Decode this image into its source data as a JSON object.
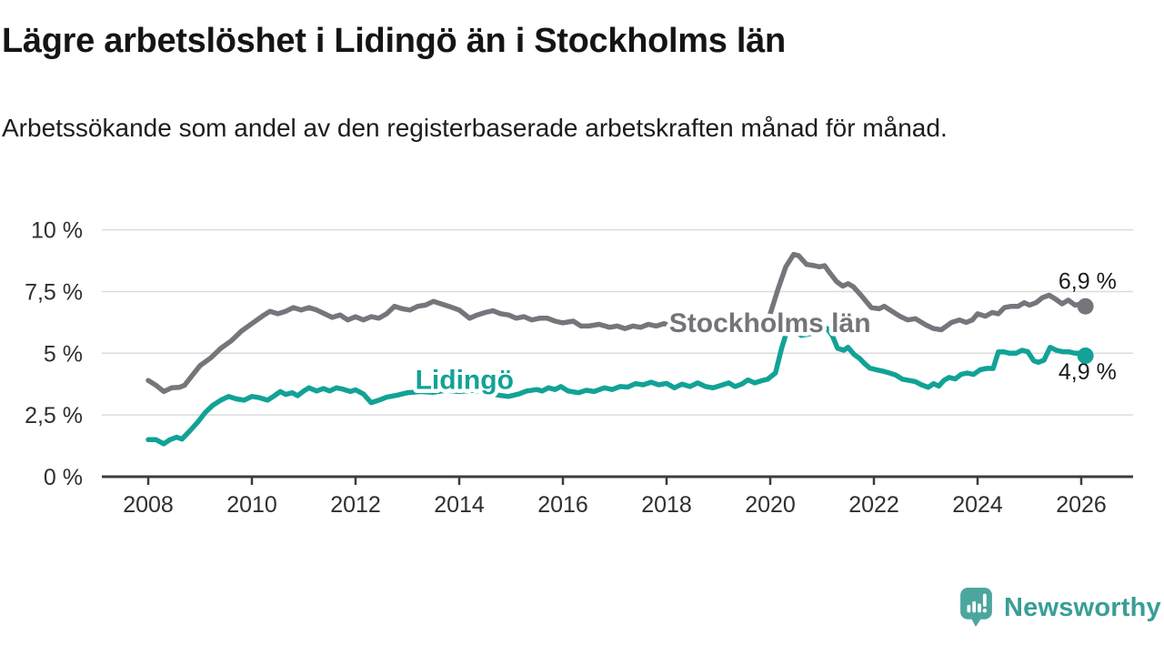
{
  "header": {
    "title": "Lägre arbetslöshet i Lidingö än i Stockholms län",
    "subtitle": "Arbetssökande som andel av den registerbaserade arbetskraften månad för månad."
  },
  "logo": {
    "text": "Newsworthy",
    "icon": "newsworthy-bars-icon",
    "mark_color": "#4BA79E",
    "text_color": "#389E96"
  },
  "chart_data": {
    "type": "line",
    "title": "Lägre arbetslöshet i Lidingö än i Stockholms län",
    "subtitle": "Arbetssökande som andel av den registerbaserade arbetskraften månad för månad.",
    "xlabel": "",
    "ylabel": "",
    "ylim": [
      0,
      10
    ],
    "xlim": [
      2007.1,
      2027.0
    ],
    "grid": true,
    "grid_color": "#DBDBDB",
    "axis_color": "#3C3C3C",
    "tick_text_color": "#2F2F2F",
    "y_ticks": [
      {
        "value": 0,
        "label": "0 %"
      },
      {
        "value": 2.5,
        "label": "2,5 %"
      },
      {
        "value": 5,
        "label": "5 %"
      },
      {
        "value": 7.5,
        "label": "7,5 %"
      },
      {
        "value": 10,
        "label": "10 %"
      }
    ],
    "x_ticks": [
      {
        "value": 2008,
        "label": "2008"
      },
      {
        "value": 2010,
        "label": "2010"
      },
      {
        "value": 2012,
        "label": "2012"
      },
      {
        "value": 2014,
        "label": "2014"
      },
      {
        "value": 2016,
        "label": "2016"
      },
      {
        "value": 2018,
        "label": "2018"
      },
      {
        "value": 2020,
        "label": "2020"
      },
      {
        "value": 2022,
        "label": "2022"
      },
      {
        "value": 2024,
        "label": "2024"
      },
      {
        "value": 2026,
        "label": "2026"
      }
    ],
    "series": [
      {
        "name": "Stockholms län",
        "color": "#77757B",
        "end_value_label": "6,9 %",
        "end_marker": true,
        "points": [
          [
            2008.0,
            3.9
          ],
          [
            2008.15,
            3.7
          ],
          [
            2008.3,
            3.45
          ],
          [
            2008.45,
            3.6
          ],
          [
            2008.6,
            3.62
          ],
          [
            2008.7,
            3.7
          ],
          [
            2008.85,
            4.1
          ],
          [
            2009.0,
            4.5
          ],
          [
            2009.2,
            4.8
          ],
          [
            2009.4,
            5.2
          ],
          [
            2009.6,
            5.5
          ],
          [
            2009.8,
            5.9
          ],
          [
            2010.0,
            6.2
          ],
          [
            2010.2,
            6.5
          ],
          [
            2010.35,
            6.7
          ],
          [
            2010.5,
            6.6
          ],
          [
            2010.65,
            6.7
          ],
          [
            2010.8,
            6.85
          ],
          [
            2010.95,
            6.75
          ],
          [
            2011.1,
            6.85
          ],
          [
            2011.25,
            6.75
          ],
          [
            2011.4,
            6.6
          ],
          [
            2011.55,
            6.45
          ],
          [
            2011.7,
            6.55
          ],
          [
            2011.85,
            6.35
          ],
          [
            2012.0,
            6.48
          ],
          [
            2012.15,
            6.35
          ],
          [
            2012.3,
            6.48
          ],
          [
            2012.45,
            6.42
          ],
          [
            2012.6,
            6.6
          ],
          [
            2012.75,
            6.9
          ],
          [
            2012.9,
            6.8
          ],
          [
            2013.05,
            6.75
          ],
          [
            2013.2,
            6.9
          ],
          [
            2013.35,
            6.95
          ],
          [
            2013.5,
            7.1
          ],
          [
            2013.65,
            7.0
          ],
          [
            2013.8,
            6.9
          ],
          [
            2014.0,
            6.75
          ],
          [
            2014.2,
            6.42
          ],
          [
            2014.35,
            6.55
          ],
          [
            2014.5,
            6.65
          ],
          [
            2014.65,
            6.72
          ],
          [
            2014.8,
            6.6
          ],
          [
            2014.95,
            6.55
          ],
          [
            2015.1,
            6.42
          ],
          [
            2015.25,
            6.48
          ],
          [
            2015.4,
            6.35
          ],
          [
            2015.55,
            6.42
          ],
          [
            2015.7,
            6.42
          ],
          [
            2015.85,
            6.3
          ],
          [
            2016.0,
            6.23
          ],
          [
            2016.2,
            6.3
          ],
          [
            2016.35,
            6.1
          ],
          [
            2016.5,
            6.1
          ],
          [
            2016.7,
            6.17
          ],
          [
            2016.9,
            6.05
          ],
          [
            2017.05,
            6.1
          ],
          [
            2017.2,
            6.0
          ],
          [
            2017.35,
            6.1
          ],
          [
            2017.5,
            6.05
          ],
          [
            2017.65,
            6.17
          ],
          [
            2017.8,
            6.1
          ],
          [
            2017.95,
            6.2
          ],
          [
            2018.1,
            6.1
          ],
          [
            2018.3,
            6.05
          ],
          [
            2018.5,
            6.1
          ],
          [
            2018.7,
            6.05
          ],
          [
            2018.9,
            6.1
          ],
          [
            2019.1,
            6.05
          ],
          [
            2019.3,
            6.0
          ],
          [
            2019.5,
            6.05
          ],
          [
            2019.7,
            6.0
          ],
          [
            2019.85,
            6.15
          ],
          [
            2020.0,
            6.6
          ],
          [
            2020.15,
            7.6
          ],
          [
            2020.3,
            8.5
          ],
          [
            2020.45,
            9.0
          ],
          [
            2020.55,
            8.95
          ],
          [
            2020.7,
            8.6
          ],
          [
            2020.85,
            8.55
          ],
          [
            2020.95,
            8.5
          ],
          [
            2021.05,
            8.55
          ],
          [
            2021.15,
            8.25
          ],
          [
            2021.28,
            7.9
          ],
          [
            2021.4,
            7.72
          ],
          [
            2021.5,
            7.82
          ],
          [
            2021.6,
            7.7
          ],
          [
            2021.75,
            7.35
          ],
          [
            2021.85,
            7.1
          ],
          [
            2021.95,
            6.85
          ],
          [
            2022.1,
            6.8
          ],
          [
            2022.2,
            6.9
          ],
          [
            2022.35,
            6.7
          ],
          [
            2022.5,
            6.5
          ],
          [
            2022.65,
            6.35
          ],
          [
            2022.8,
            6.4
          ],
          [
            2023.0,
            6.15
          ],
          [
            2023.15,
            6.0
          ],
          [
            2023.3,
            5.95
          ],
          [
            2023.5,
            6.25
          ],
          [
            2023.65,
            6.35
          ],
          [
            2023.78,
            6.25
          ],
          [
            2023.9,
            6.35
          ],
          [
            2024.0,
            6.6
          ],
          [
            2024.15,
            6.5
          ],
          [
            2024.28,
            6.65
          ],
          [
            2024.4,
            6.6
          ],
          [
            2024.52,
            6.85
          ],
          [
            2024.65,
            6.9
          ],
          [
            2024.78,
            6.9
          ],
          [
            2024.9,
            7.05
          ],
          [
            2025.0,
            6.95
          ],
          [
            2025.13,
            7.05
          ],
          [
            2025.25,
            7.25
          ],
          [
            2025.38,
            7.35
          ],
          [
            2025.5,
            7.2
          ],
          [
            2025.63,
            7.0
          ],
          [
            2025.75,
            7.15
          ],
          [
            2025.88,
            6.95
          ],
          [
            2026.0,
            7.0
          ],
          [
            2026.08,
            6.9
          ]
        ]
      },
      {
        "name": "Lidingö",
        "color": "#12A296",
        "end_value_label": "4,9 %",
        "end_marker": true,
        "points": [
          [
            2008.0,
            1.5
          ],
          [
            2008.15,
            1.5
          ],
          [
            2008.3,
            1.33
          ],
          [
            2008.42,
            1.5
          ],
          [
            2008.55,
            1.6
          ],
          [
            2008.65,
            1.52
          ],
          [
            2008.8,
            1.85
          ],
          [
            2008.95,
            2.2
          ],
          [
            2009.1,
            2.6
          ],
          [
            2009.25,
            2.9
          ],
          [
            2009.4,
            3.1
          ],
          [
            2009.55,
            3.25
          ],
          [
            2009.7,
            3.15
          ],
          [
            2009.85,
            3.1
          ],
          [
            2010.0,
            3.25
          ],
          [
            2010.15,
            3.2
          ],
          [
            2010.3,
            3.1
          ],
          [
            2010.45,
            3.3
          ],
          [
            2010.55,
            3.45
          ],
          [
            2010.65,
            3.33
          ],
          [
            2010.78,
            3.4
          ],
          [
            2010.88,
            3.28
          ],
          [
            2011.0,
            3.47
          ],
          [
            2011.1,
            3.6
          ],
          [
            2011.25,
            3.47
          ],
          [
            2011.38,
            3.57
          ],
          [
            2011.5,
            3.47
          ],
          [
            2011.63,
            3.6
          ],
          [
            2011.75,
            3.55
          ],
          [
            2011.9,
            3.45
          ],
          [
            2012.0,
            3.52
          ],
          [
            2012.15,
            3.35
          ],
          [
            2012.3,
            3.0
          ],
          [
            2012.45,
            3.1
          ],
          [
            2012.6,
            3.22
          ],
          [
            2012.8,
            3.3
          ],
          [
            2013.0,
            3.4
          ],
          [
            2013.25,
            3.45
          ],
          [
            2013.5,
            3.42
          ],
          [
            2013.75,
            3.5
          ],
          [
            2014.0,
            3.45
          ],
          [
            2014.25,
            3.5
          ],
          [
            2014.5,
            3.45
          ],
          [
            2014.75,
            3.3
          ],
          [
            2014.95,
            3.25
          ],
          [
            2015.15,
            3.35
          ],
          [
            2015.3,
            3.47
          ],
          [
            2015.5,
            3.53
          ],
          [
            2015.6,
            3.47
          ],
          [
            2015.72,
            3.6
          ],
          [
            2015.85,
            3.53
          ],
          [
            2015.96,
            3.65
          ],
          [
            2016.1,
            3.47
          ],
          [
            2016.3,
            3.4
          ],
          [
            2016.45,
            3.5
          ],
          [
            2016.6,
            3.45
          ],
          [
            2016.8,
            3.6
          ],
          [
            2016.95,
            3.53
          ],
          [
            2017.1,
            3.65
          ],
          [
            2017.25,
            3.63
          ],
          [
            2017.4,
            3.77
          ],
          [
            2017.55,
            3.72
          ],
          [
            2017.7,
            3.83
          ],
          [
            2017.85,
            3.72
          ],
          [
            2018.0,
            3.78
          ],
          [
            2018.15,
            3.6
          ],
          [
            2018.3,
            3.75
          ],
          [
            2018.45,
            3.65
          ],
          [
            2018.6,
            3.8
          ],
          [
            2018.75,
            3.65
          ],
          [
            2018.9,
            3.6
          ],
          [
            2019.05,
            3.7
          ],
          [
            2019.2,
            3.8
          ],
          [
            2019.32,
            3.65
          ],
          [
            2019.45,
            3.75
          ],
          [
            2019.57,
            3.92
          ],
          [
            2019.7,
            3.8
          ],
          [
            2019.82,
            3.88
          ],
          [
            2019.95,
            3.95
          ],
          [
            2020.1,
            4.2
          ],
          [
            2020.22,
            5.2
          ],
          [
            2020.33,
            5.95
          ],
          [
            2020.45,
            5.9
          ],
          [
            2020.6,
            5.72
          ],
          [
            2020.75,
            5.78
          ],
          [
            2020.88,
            5.85
          ],
          [
            2021.0,
            5.95
          ],
          [
            2021.1,
            6.0
          ],
          [
            2021.2,
            5.7
          ],
          [
            2021.3,
            5.2
          ],
          [
            2021.42,
            5.12
          ],
          [
            2021.5,
            5.24
          ],
          [
            2021.62,
            4.95
          ],
          [
            2021.72,
            4.8
          ],
          [
            2021.82,
            4.58
          ],
          [
            2021.92,
            4.4
          ],
          [
            2022.05,
            4.33
          ],
          [
            2022.18,
            4.27
          ],
          [
            2022.3,
            4.2
          ],
          [
            2022.42,
            4.12
          ],
          [
            2022.55,
            3.95
          ],
          [
            2022.68,
            3.9
          ],
          [
            2022.8,
            3.85
          ],
          [
            2022.92,
            3.72
          ],
          [
            2023.05,
            3.62
          ],
          [
            2023.15,
            3.77
          ],
          [
            2023.25,
            3.67
          ],
          [
            2023.35,
            3.9
          ],
          [
            2023.45,
            4.02
          ],
          [
            2023.57,
            3.96
          ],
          [
            2023.68,
            4.14
          ],
          [
            2023.8,
            4.2
          ],
          [
            2023.92,
            4.14
          ],
          [
            2024.05,
            4.33
          ],
          [
            2024.18,
            4.39
          ],
          [
            2024.3,
            4.38
          ],
          [
            2024.4,
            5.05
          ],
          [
            2024.5,
            5.06
          ],
          [
            2024.62,
            5.0
          ],
          [
            2024.74,
            5.0
          ],
          [
            2024.86,
            5.12
          ],
          [
            2024.97,
            5.06
          ],
          [
            2025.08,
            4.7
          ],
          [
            2025.17,
            4.63
          ],
          [
            2025.28,
            4.72
          ],
          [
            2025.4,
            5.24
          ],
          [
            2025.52,
            5.12
          ],
          [
            2025.64,
            5.06
          ],
          [
            2025.76,
            5.06
          ],
          [
            2025.88,
            5.0
          ],
          [
            2026.0,
            5.0
          ],
          [
            2026.08,
            4.9
          ]
        ]
      }
    ],
    "annotations": [
      {
        "text": "Stockholms län",
        "x": 2018.05,
        "y": 5.86,
        "color": "#75737A",
        "bold": true,
        "halo": true,
        "size": 30
      },
      {
        "text": "Lidingö",
        "x": 2013.15,
        "y": 3.55,
        "color": "#12A296",
        "bold": true,
        "halo": true,
        "size": 30
      },
      {
        "text": "6,9 %",
        "x": 2025.56,
        "y": 7.6,
        "color": "#1A1A1A",
        "bold": false,
        "halo": false,
        "size": 25
      },
      {
        "text": "4,9 %",
        "x": 2025.56,
        "y": 3.94,
        "color": "#1A1A1A",
        "bold": false,
        "halo": false,
        "size": 25
      }
    ],
    "legend_position": "inline-labels"
  }
}
